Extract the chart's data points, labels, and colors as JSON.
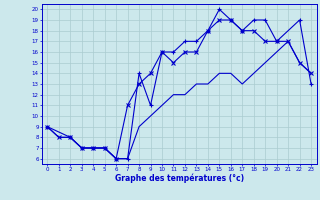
{
  "xlabel": "Graphe des températures (°c)",
  "bg_color": "#cce8ec",
  "line_color": "#0000cc",
  "grid_color": "#aaccd0",
  "xlim": [
    -0.5,
    23.5
  ],
  "ylim": [
    5.5,
    20.5
  ],
  "xticks": [
    0,
    1,
    2,
    3,
    4,
    5,
    6,
    7,
    8,
    9,
    10,
    11,
    12,
    13,
    14,
    15,
    16,
    17,
    18,
    19,
    20,
    21,
    22,
    23
  ],
  "yticks": [
    6,
    7,
    8,
    9,
    10,
    11,
    12,
    13,
    14,
    15,
    16,
    17,
    18,
    19,
    20
  ],
  "line1_x": [
    0,
    1,
    2,
    3,
    4,
    5,
    6,
    7,
    8,
    9,
    10,
    11,
    12,
    13,
    14,
    15,
    16,
    17,
    18,
    19,
    20,
    21,
    22,
    23
  ],
  "line1_y": [
    9,
    8,
    8,
    7,
    7,
    7,
    6,
    6,
    9,
    10,
    11,
    12,
    12,
    13,
    13,
    14,
    14,
    13,
    14,
    15,
    16,
    17,
    15,
    14
  ],
  "line2_x": [
    0,
    1,
    2,
    3,
    4,
    5,
    6,
    7,
    8,
    9,
    10,
    11,
    12,
    13,
    14,
    15,
    16,
    17,
    18,
    19,
    20,
    21,
    22,
    23
  ],
  "line2_y": [
    9,
    8,
    8,
    7,
    7,
    7,
    6,
    11,
    13,
    14,
    16,
    15,
    16,
    16,
    18,
    19,
    19,
    18,
    18,
    17,
    17,
    17,
    15,
    14
  ],
  "line3_x": [
    0,
    2,
    3,
    4,
    5,
    6,
    7,
    8,
    9,
    10,
    11,
    12,
    13,
    14,
    15,
    16,
    17,
    18,
    19,
    20,
    22,
    23
  ],
  "line3_y": [
    9,
    8,
    7,
    7,
    7,
    6,
    6,
    14,
    11,
    16,
    16,
    17,
    17,
    18,
    20,
    19,
    18,
    19,
    19,
    17,
    19,
    13
  ]
}
